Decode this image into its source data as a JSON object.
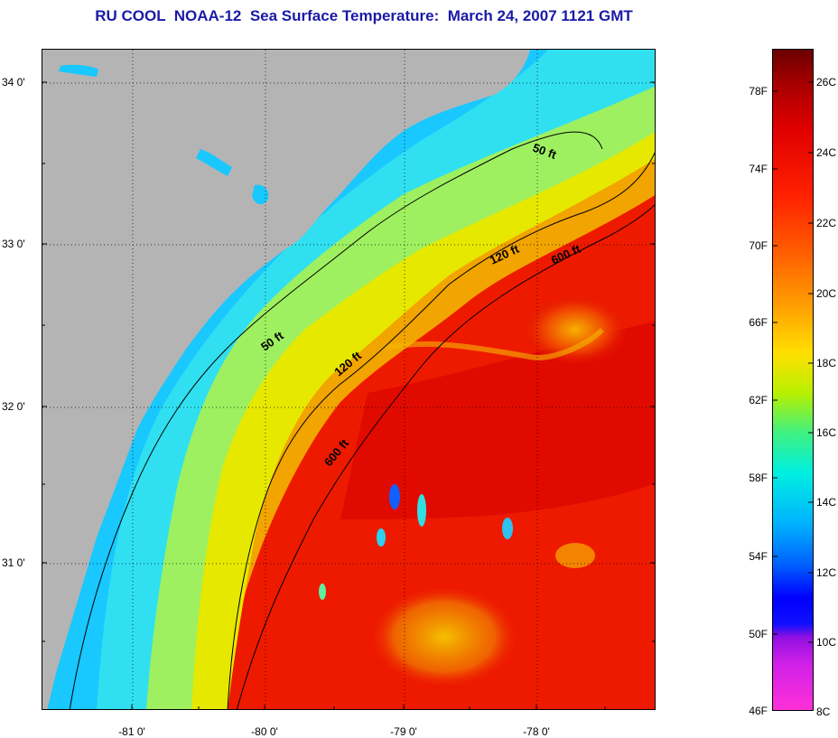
{
  "title": "RU COOL  NOAA-12  Sea Surface Temperature:  March 24, 2007 1121 GMT",
  "map": {
    "latitude_labels": [
      "34 0'",
      "33 0'",
      "32 0'",
      "31 0'"
    ],
    "longitude_labels": [
      "-81 0'",
      "-80 0'",
      "-79 0'",
      "-78 0'"
    ],
    "isobath_labels": [
      "50 ft",
      "120 ft",
      "600 ft",
      "50 ft",
      "120 ft",
      "600 ft"
    ],
    "colors": {
      "land": "#b4b4b4",
      "nearshore_cold": "#2fe0f0",
      "shelf_warm": "#c8f040",
      "gulf_stream": "#f01400",
      "contour": "#000000"
    }
  },
  "colorbar": {
    "fahrenheit_labels": [
      "78F",
      "74F",
      "70F",
      "66F",
      "62F",
      "58F",
      "54F",
      "50F",
      "46F"
    ],
    "celsius_labels": [
      "26C",
      "24C",
      "22C",
      "20C",
      "18C",
      "16C",
      "14C",
      "12C",
      "10C",
      "8C"
    ]
  }
}
